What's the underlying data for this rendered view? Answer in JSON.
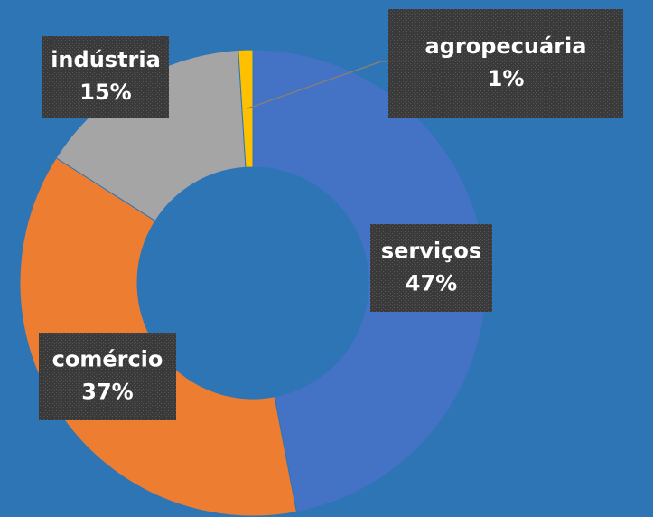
{
  "chart_data": {
    "type": "donut",
    "categories": [
      "serviços",
      "comércio",
      "indústria",
      "agropecuária"
    ],
    "values": [
      47,
      37,
      15,
      1
    ],
    "value_labels": [
      "47%",
      "37%",
      "15%",
      "1%"
    ],
    "colors": [
      "#4472c4",
      "#ed7d31",
      "#a5a5a5",
      "#ffc000"
    ]
  }
}
